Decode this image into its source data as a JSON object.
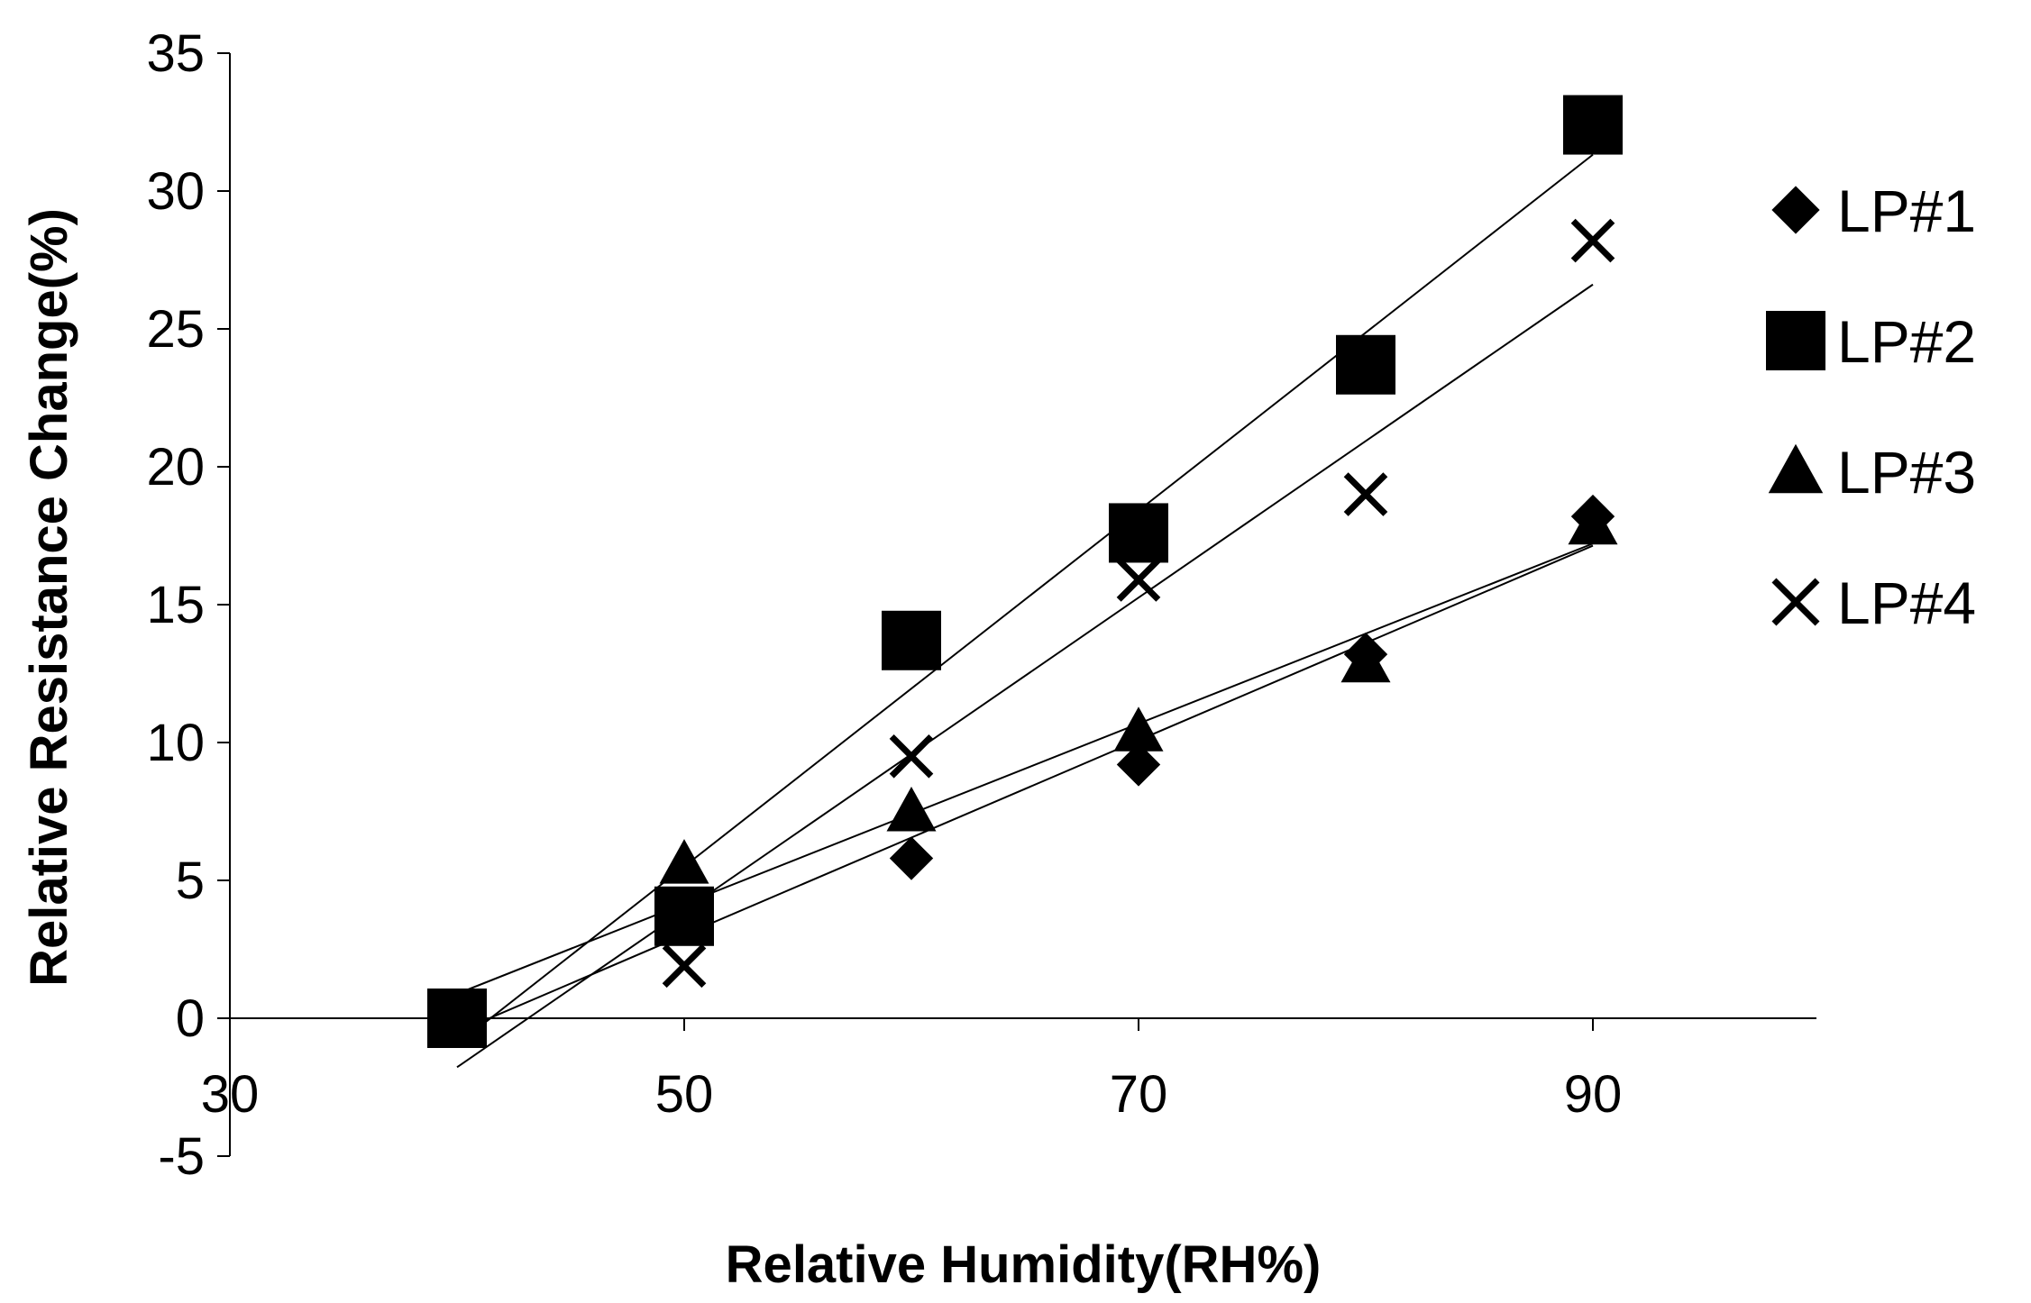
{
  "chart_data": {
    "type": "scatter",
    "title": "",
    "xlabel": "Relative Humidity(RH%)",
    "ylabel": "Relative Resistance Change(%)",
    "xlim": [
      30,
      100
    ],
    "ylim": [
      -5,
      35
    ],
    "x_ticks": [
      30,
      50,
      70,
      90
    ],
    "y_ticks": [
      -5,
      0,
      5,
      10,
      15,
      20,
      25,
      30,
      35
    ],
    "grid": false,
    "legend": "right",
    "trendlines": "linear fit per series",
    "series": [
      {
        "name": "LP#1",
        "marker": "diamond",
        "color": "#000000",
        "x": [
          40,
          50,
          60,
          70,
          80,
          90
        ],
        "y": [
          0.0,
          3.5,
          5.8,
          9.2,
          13.2,
          18.2
        ]
      },
      {
        "name": "LP#2",
        "marker": "square",
        "color": "#000000",
        "x": [
          40,
          50,
          60,
          70,
          80,
          90
        ],
        "y": [
          0.0,
          3.7,
          13.7,
          17.6,
          23.7,
          32.4
        ]
      },
      {
        "name": "LP#3",
        "marker": "triangle",
        "color": "#000000",
        "x": [
          40,
          50,
          60,
          70,
          80,
          90
        ],
        "y": [
          0.0,
          5.6,
          7.5,
          10.4,
          12.9,
          17.9
        ]
      },
      {
        "name": "LP#4",
        "marker": "x",
        "color": "#000000",
        "x": [
          40,
          50,
          60,
          70,
          80,
          90
        ],
        "y": [
          0.0,
          1.9,
          9.5,
          15.9,
          19.0,
          28.2
        ]
      }
    ]
  }
}
